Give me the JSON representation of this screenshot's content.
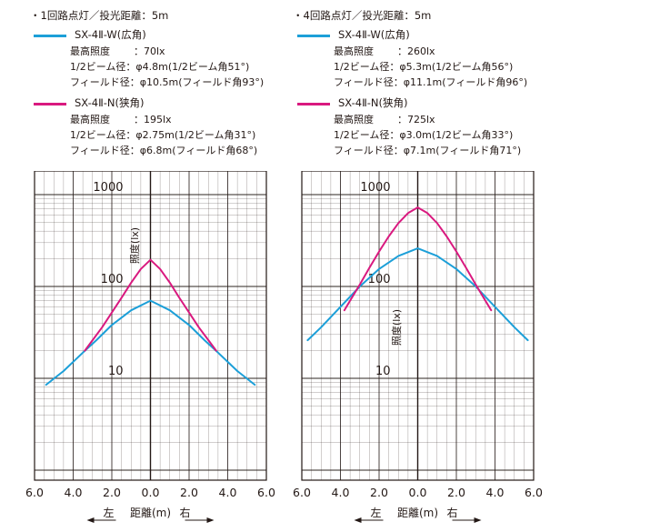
{
  "colors": {
    "wide": "#1c9fd8",
    "narrow": "#d9197f",
    "text": "#231815",
    "grid": "#231815"
  },
  "panels": [
    {
      "heading": "・1回路点灯／投光距離：5m",
      "series": [
        {
          "name": "SX-4Ⅱ-W(広角)",
          "color_key": "wide",
          "specs": [
            {
              "label": "最高照度",
              "value": "：70lx"
            },
            {
              "label": "1/2ビーム径：",
              "value": "φ4.8m(1/2ビーム角51°)"
            },
            {
              "label": "フィールド径：",
              "value": "φ10.5m(フィールド角93°)"
            }
          ]
        },
        {
          "name": "SX-4Ⅱ-N(狭角)",
          "color_key": "narrow",
          "specs": [
            {
              "label": "最高照度",
              "value": "：195lx"
            },
            {
              "label": "1/2ビーム径：",
              "value": "φ2.75m(1/2ビーム角31°)"
            },
            {
              "label": "フィールド径：",
              "value": "φ6.8m(フィールド角68°)"
            }
          ]
        }
      ]
    },
    {
      "heading": "・4回路点灯／投光距離：5m",
      "series": [
        {
          "name": "SX-4Ⅱ-W(広角)",
          "color_key": "wide",
          "specs": [
            {
              "label": "最高照度",
              "value": "：260lx"
            },
            {
              "label": "1/2ビーム径：",
              "value": "φ5.3m(1/2ビーム角56°)"
            },
            {
              "label": "フィールド径：",
              "value": "φ11.1m(フィールド角96°)"
            }
          ]
        },
        {
          "name": "SX-4Ⅱ-N(狭角)",
          "color_key": "narrow",
          "specs": [
            {
              "label": "最高照度",
              "value": "：725lx"
            },
            {
              "label": "1/2ビーム径：",
              "value": "φ3.0m(1/2ビーム角33°)"
            },
            {
              "label": "フィールド径：",
              "value": "φ7.1m(フィールド角71°)"
            }
          ]
        }
      ]
    }
  ],
  "chart_data": [
    {
      "type": "line",
      "xlabel": "距離(m)",
      "ylabel": "照度(lx)",
      "left_label": "左",
      "right_label": "右",
      "xlim": [
        -6,
        6
      ],
      "ylim": [
        1,
        2000
      ],
      "y_scale": "log",
      "x_ticks": [
        "6.0",
        "4.0",
        "2.0",
        "0.0",
        "2.0",
        "4.0",
        "6.0"
      ],
      "y_tick_labels": [
        "1000",
        "100",
        "10"
      ],
      "grid": true,
      "series": [
        {
          "name": "SX-4Ⅱ-W(広角)",
          "color_key": "wide",
          "x": [
            -5.4,
            -4.5,
            -3.5,
            -2.8,
            -2.0,
            -1.0,
            0.0,
            1.0,
            2.0,
            2.8,
            3.5,
            4.5,
            5.4
          ],
          "y": [
            8.5,
            12,
            19,
            26,
            38,
            55,
            70,
            55,
            38,
            26,
            19,
            12,
            8.5
          ]
        },
        {
          "name": "SX-4Ⅱ-N(狭角)",
          "color_key": "narrow",
          "x": [
            -3.4,
            -3.0,
            -2.5,
            -2.0,
            -1.5,
            -1.0,
            -0.5,
            0.0,
            0.5,
            1.0,
            1.5,
            2.0,
            2.5,
            3.0,
            3.4
          ],
          "y": [
            20,
            26,
            36,
            52,
            75,
            110,
            155,
            195,
            155,
            110,
            75,
            52,
            36,
            26,
            20
          ]
        }
      ]
    },
    {
      "type": "line",
      "xlabel": "距離(m)",
      "ylabel": "照度(lx)",
      "left_label": "左",
      "right_label": "右",
      "xlim": [
        -6,
        6
      ],
      "ylim": [
        1,
        2000
      ],
      "y_scale": "log",
      "x_ticks": [
        "6.0",
        "4.0",
        "2.0",
        "0.0",
        "2.0",
        "4.0",
        "6.0"
      ],
      "y_tick_labels": [
        "1000",
        "100",
        "10"
      ],
      "grid": true,
      "series": [
        {
          "name": "SX-4Ⅱ-W(広角)",
          "color_key": "wide",
          "x": [
            -5.7,
            -5.0,
            -4.0,
            -3.0,
            -2.0,
            -1.0,
            0.0,
            1.0,
            2.0,
            3.0,
            4.0,
            5.0,
            5.7
          ],
          "y": [
            26,
            36,
            60,
            100,
            155,
            215,
            260,
            215,
            155,
            100,
            60,
            36,
            26
          ]
        },
        {
          "name": "SX-4Ⅱ-N(狭角)",
          "color_key": "narrow",
          "x": [
            -3.8,
            -3.5,
            -3.0,
            -2.5,
            -2.0,
            -1.5,
            -1.0,
            -0.5,
            0.0,
            0.5,
            1.0,
            1.5,
            2.0,
            2.5,
            3.0,
            3.5,
            3.8
          ],
          "y": [
            55,
            70,
            105,
            160,
            240,
            350,
            490,
            630,
            725,
            630,
            490,
            350,
            240,
            160,
            105,
            70,
            55
          ]
        }
      ]
    }
  ]
}
